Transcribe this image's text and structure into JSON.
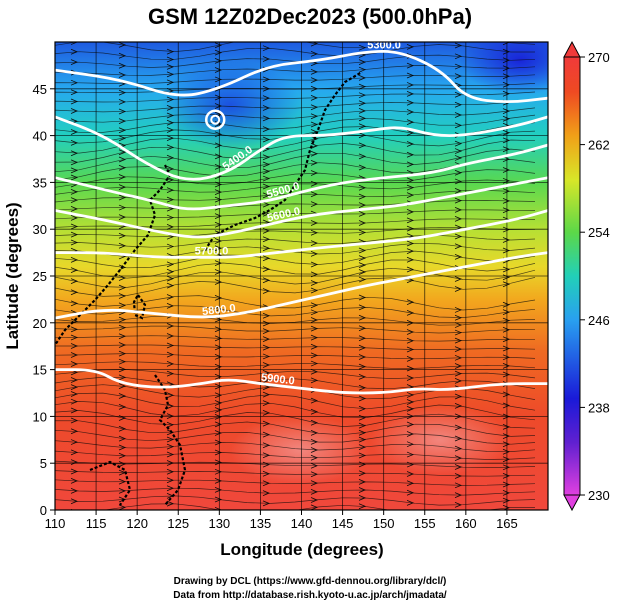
{
  "title": "GSM 12Z02Dec2023 (500.0hPa)",
  "chart_data": {
    "type": "heatmap",
    "title": "GSM 12Z02Dec2023 (500.0hPa)",
    "xlabel": "Longitude (degrees)",
    "ylabel": "Latitude  (degrees)",
    "xlim": [
      110,
      170
    ],
    "ylim": [
      0,
      50
    ],
    "xticks": [
      110,
      115,
      120,
      125,
      130,
      135,
      140,
      145,
      150,
      155,
      160,
      165
    ],
    "yticks": [
      0,
      5,
      10,
      15,
      20,
      25,
      30,
      35,
      40,
      45
    ],
    "grid": true,
    "colorbar": {
      "range": [
        230,
        270
      ],
      "ticks": [
        270,
        262,
        254,
        246,
        238,
        230
      ],
      "colors": [
        "#e040e0",
        "#1a1ad8",
        "#29a0f0",
        "#22d0b8",
        "#5cd848",
        "#d8e628",
        "#f0a018",
        "#ef4a22",
        "#f03a3a"
      ]
    },
    "contours": [
      {
        "label": "5300.0",
        "points": [
          [
            110,
            47
          ],
          [
            118,
            46
          ],
          [
            125,
            44
          ],
          [
            130,
            45
          ],
          [
            136,
            47.5
          ],
          [
            142,
            48
          ],
          [
            148,
            49
          ],
          [
            152,
            49
          ],
          [
            157,
            47
          ],
          [
            160,
            44
          ],
          [
            165,
            43.5
          ],
          [
            170,
            44
          ]
        ]
      },
      {
        "label": "5400.0",
        "points": [
          [
            110,
            42
          ],
          [
            116,
            40
          ],
          [
            121,
            37
          ],
          [
            126,
            35
          ],
          [
            131,
            36
          ],
          [
            135,
            38.5
          ],
          [
            138,
            40
          ],
          [
            143,
            40
          ],
          [
            148,
            40.5
          ],
          [
            152,
            41
          ],
          [
            156,
            40
          ],
          [
            160,
            40
          ],
          [
            166,
            41
          ],
          [
            170,
            42
          ]
        ]
      },
      {
        "label": "5500.0",
        "points": [
          [
            110,
            35.5
          ],
          [
            117,
            34
          ],
          [
            122,
            33
          ],
          [
            126,
            32
          ],
          [
            131,
            32.5
          ],
          [
            136,
            33
          ],
          [
            140,
            34
          ],
          [
            145,
            35
          ],
          [
            150,
            35.5
          ],
          [
            156,
            36
          ],
          [
            160,
            37
          ],
          [
            166,
            38
          ],
          [
            170,
            39
          ]
        ]
      },
      {
        "label": "5600.0",
        "points": [
          [
            110,
            32
          ],
          [
            116,
            31
          ],
          [
            121,
            30
          ],
          [
            127,
            29
          ],
          [
            131,
            29.5
          ],
          [
            136,
            30.5
          ],
          [
            141,
            31.5
          ],
          [
            146,
            32
          ],
          [
            152,
            32.5
          ],
          [
            158,
            33.5
          ],
          [
            164,
            34.5
          ],
          [
            170,
            35.5
          ]
        ]
      },
      {
        "label": "5700.0",
        "points": [
          [
            110,
            27.5
          ],
          [
            116,
            27.5
          ],
          [
            122,
            27
          ],
          [
            127,
            27
          ],
          [
            132,
            27
          ],
          [
            137,
            27.5
          ],
          [
            142,
            28
          ],
          [
            148,
            28.5
          ],
          [
            154,
            29
          ],
          [
            160,
            30
          ],
          [
            166,
            31
          ],
          [
            170,
            32
          ]
        ]
      },
      {
        "label": "5800.0",
        "points": [
          [
            110,
            20.5
          ],
          [
            116,
            21.5
          ],
          [
            122,
            21
          ],
          [
            128,
            20.5
          ],
          [
            133,
            21
          ],
          [
            138,
            22
          ],
          [
            143,
            23
          ],
          [
            148,
            24
          ],
          [
            154,
            25
          ],
          [
            160,
            26
          ],
          [
            166,
            27
          ],
          [
            170,
            27.5
          ]
        ]
      },
      {
        "label": "5900.0",
        "points": [
          [
            110,
            15
          ],
          [
            115,
            15
          ],
          [
            118,
            13.5
          ],
          [
            123,
            13
          ],
          [
            128,
            13.5
          ],
          [
            131,
            14
          ],
          [
            135,
            13.5
          ],
          [
            140,
            13
          ],
          [
            145,
            12.5
          ],
          [
            150,
            12.5
          ],
          [
            154,
            13
          ],
          [
            158,
            12.8
          ],
          [
            164,
            13.5
          ],
          [
            170,
            13.5
          ]
        ]
      }
    ],
    "closed_low": {
      "label": "",
      "lon": 129.5,
      "lat": 41.7
    }
  },
  "credits": {
    "line1": "Drawing by DCL (https://www.gfd-dennou.org/library/dcl/)",
    "line2": "Data from http://database.rish.kyoto-u.ac.jp/arch/jmadata/"
  }
}
